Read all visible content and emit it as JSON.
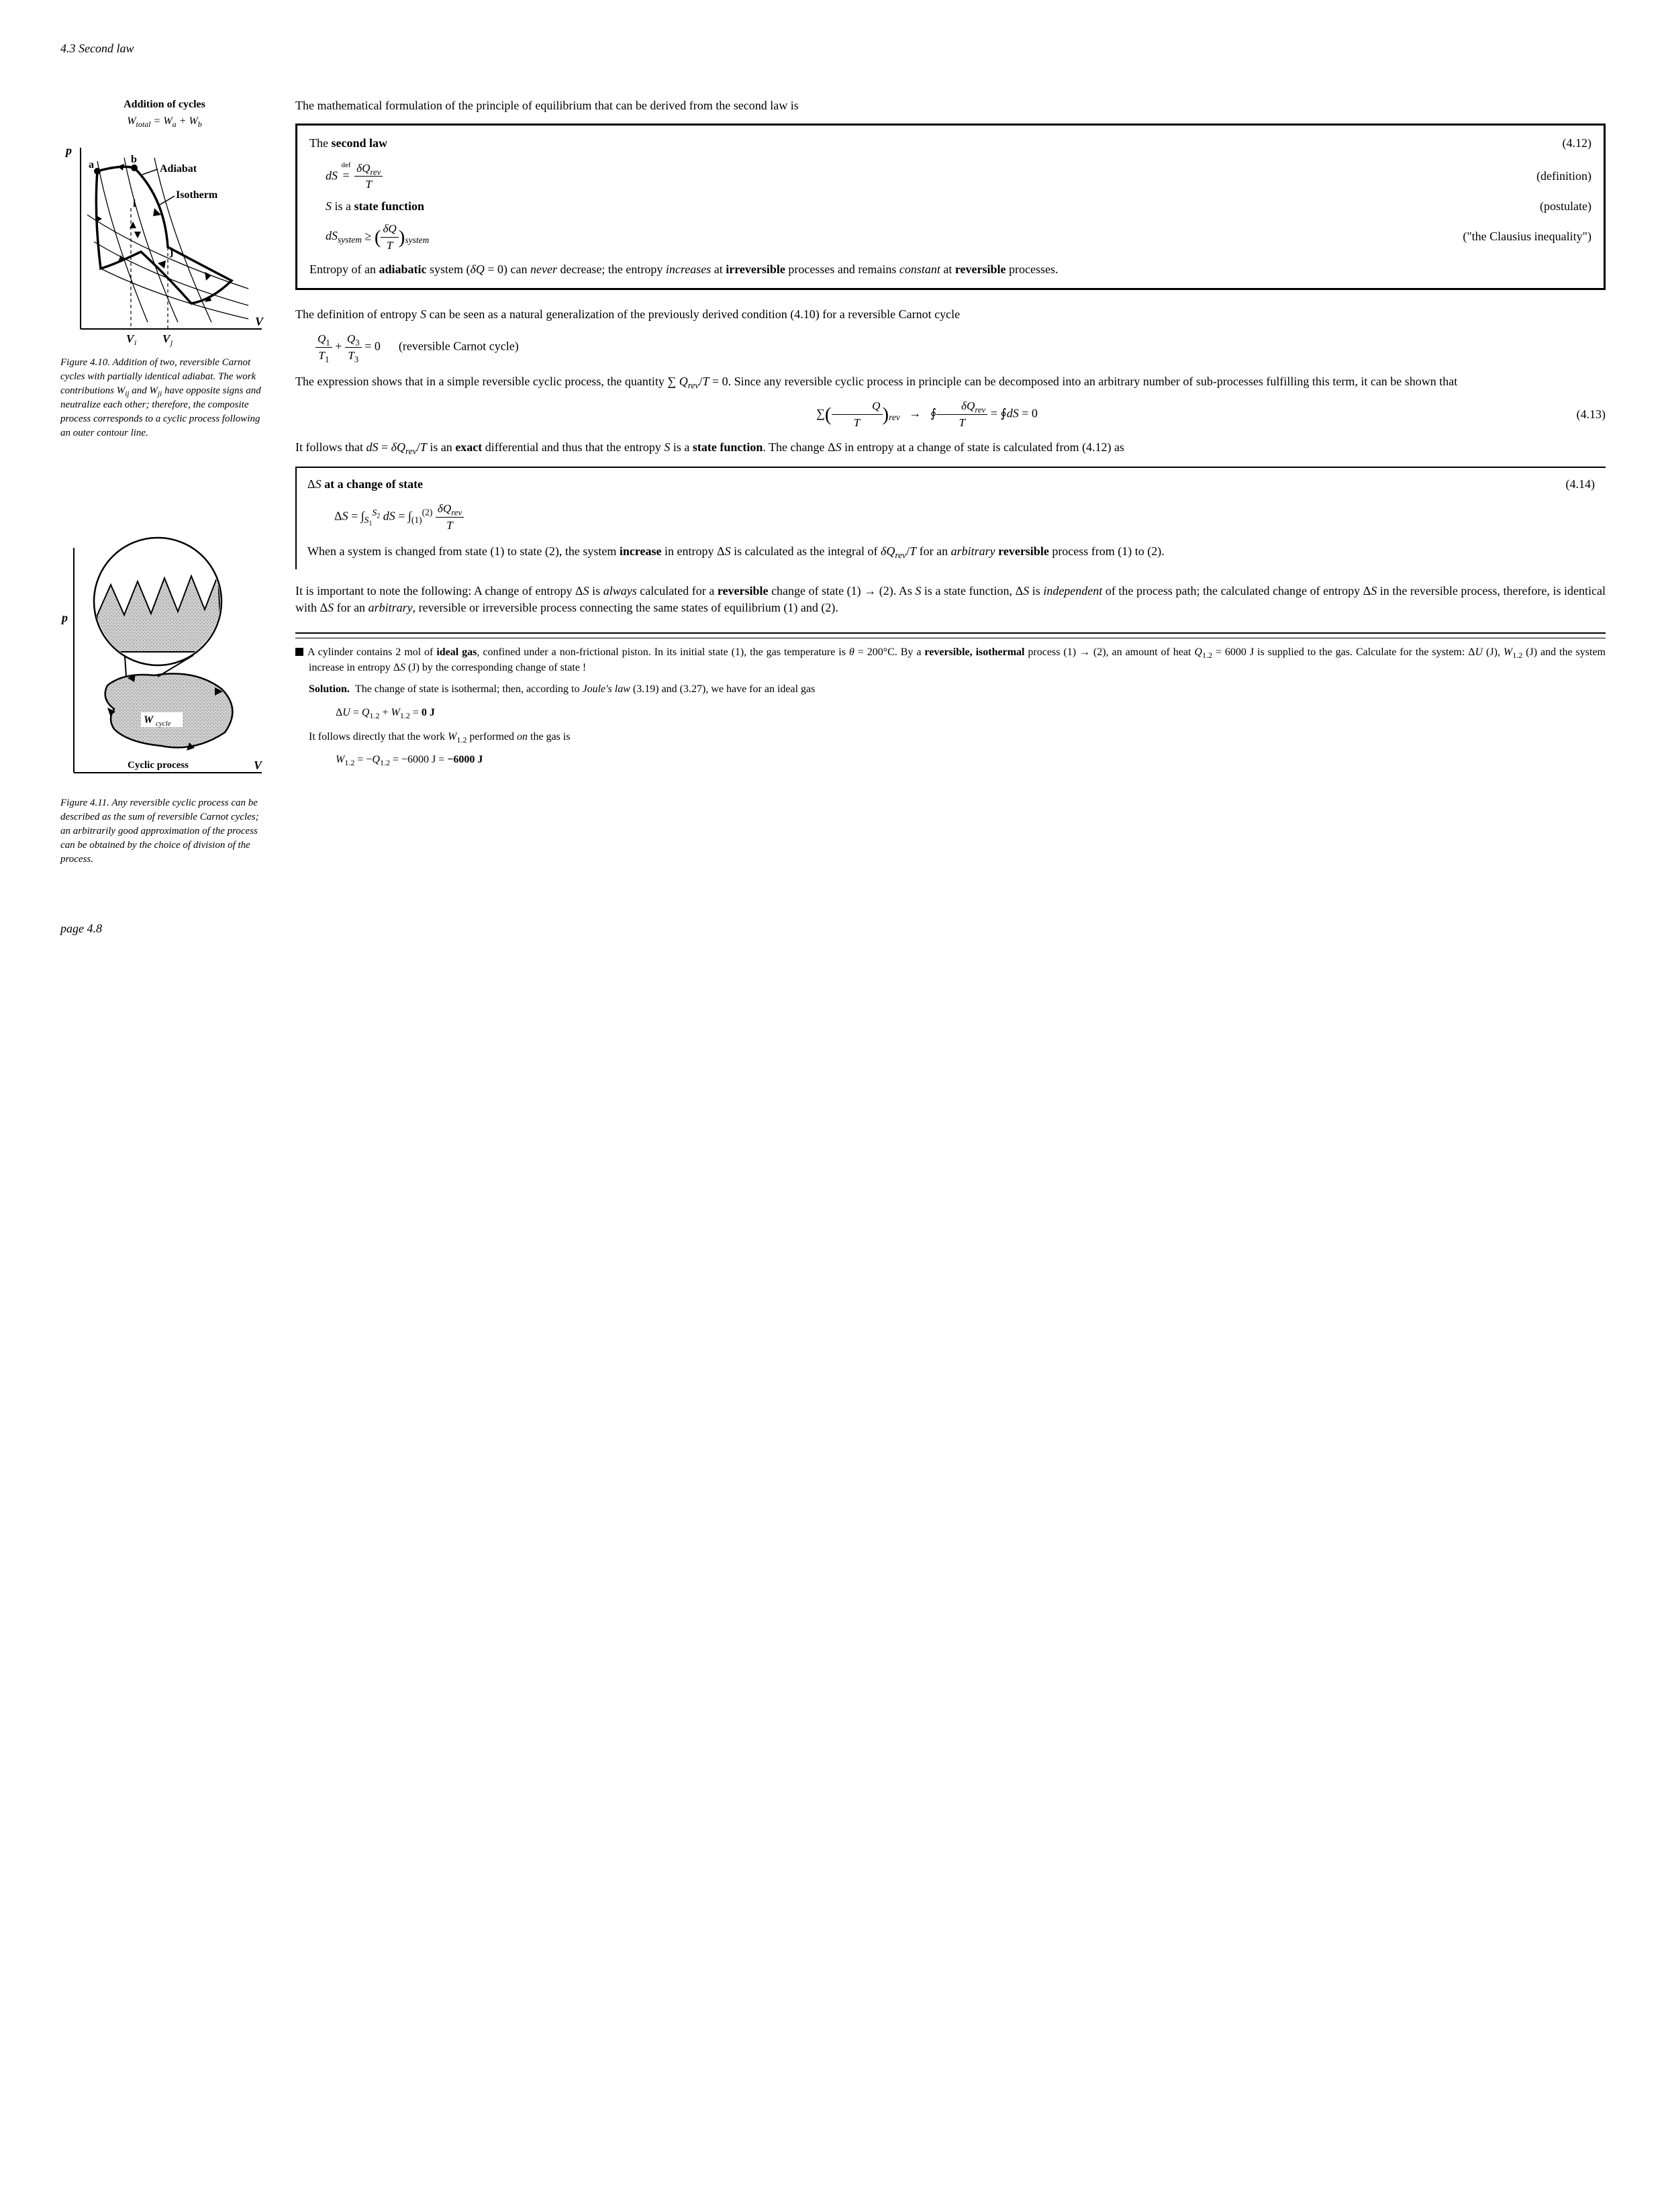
{
  "header": "4.3 Second law",
  "footer": "page 4.8",
  "figures": {
    "f10": {
      "overtitle": "Addition of cycles",
      "eq_line": "W<sub>total</sub> = W<sub>a</sub> + W<sub>b</sub>",
      "labels": {
        "p": "p",
        "V": "V",
        "a": "a",
        "b": "b",
        "i": "i",
        "j": "j",
        "Vi": "V<sub>i</sub>",
        "Vj": "V<sub>j</sub>",
        "adiabat": "Adiabat",
        "isotherm": "Isotherm"
      },
      "caption_label": "Figure 4.10.",
      "caption_body": "Addition of two, reversible Carnot cycles with partially identical adiabat. The work contributions W<sub>ij</sub> and W<sub>ji</sub> have opposite signs and neutralize each other; therefore, the composite process corresponds to a cyclic process following an outer contour line."
    },
    "f11": {
      "labels": {
        "p": "p",
        "V": "V",
        "cyclic": "Cyclic process",
        "Wcycle": "W<sub>cycle</sub>"
      },
      "caption_label": "Figure 4.11.",
      "caption_body": "Any reversible cyclic process can be described as the sum of reversible Carnot cycles; an arbitrarily good approximation of the process can be obtained by the choice of division of the process."
    }
  },
  "body": {
    "intro": "The mathematical formulation of the principle of equilibrium that can be derived from the second law is",
    "lawbox": {
      "title_html": "The <b>second law</b>",
      "eqnum": "(4.12)",
      "items": [
        {
          "eq_html": "<i>dS</i> <span class='def-eq'><span class='top'>def</span>=</span> <span class='frac'><span class='num'><i>δQ<sub>rev</sub></i></span><span class='den'><i>T</i></span></span>",
          "tag": "(definition)"
        },
        {
          "eq_html": "<i>S</i> is a <b>state function</b>",
          "tag": "(postulate)"
        },
        {
          "eq_html": "<i>dS<sub>system</sub></i> ≥ <span class='bigparen'>(</span><span class='frac'><span class='num'><i>δQ</i></span><span class='den'><i>T</i></span></span><span class='bigparen'>)</span><sub><i>system</i></sub>",
          "tag": "(\"the Clausius inequality\")"
        }
      ],
      "tail_html": "Entropy of an <b>adiabatic</b> system (<i>δQ</i> = 0) can <i>never</i> decrease; the entropy <i>increases</i> at <b>irreversible</b> processes and remains <i>constant</i> at <b>reversible</b> processes."
    },
    "para2": "The definition of entropy <i>S</i> can be seen as a natural generalization of the previously derived condition (4.10) for a reversible Carnot cycle",
    "eq_carnot_html": "<span class='frac'><span class='num'><i>Q</i><sub>1</sub></span><span class='den'><i>T</i><sub>1</sub></span></span> + <span class='frac'><span class='num'><i>Q</i><sub>3</sub></span><span class='den'><i>T</i><sub>3</sub></span></span> = 0 &nbsp;&nbsp;&nbsp;&nbsp; (reversible Carnot cycle)",
    "para3": "The expression shows that in a simple reversible cyclic process, the quantity ∑ <i>Q<sub>rev</sub></i>/<i>T</i> = 0. Since any reversible cyclic process in principle can be decomposed into an arbitrary number of sub-processes fulfilling this term, it can be shown that",
    "eq413_html": "∑<span class='bigparen'>(</span><span class='frac'><span class='num'><i>Q</i></span><span class='den'><i>T</i></span></span><span class='bigparen'>)</span><sub><i>rev</i></sub> &nbsp;&nbsp;→&nbsp;&nbsp; ∮<span class='frac'><span class='num'><i>δQ<sub>rev</sub></i></span><span class='den'><i>T</i></span></span> = ∮<i>dS</i> = 0",
    "eq413_num": "(4.13)",
    "para4": "It follows that <i>dS</i> = <i>δQ<sub>rev</sub></i>/<i>T</i> is an <b>exact</b> differential and thus that the entropy <i>S</i> is a <b>state function</b>. The change Δ<i>S</i> in entropy at a change of state is calculated from (4.12) as",
    "insetbox": {
      "title_html": "Δ<i>S</i> <b>at a change of state</b>",
      "eqnum": "(4.14)",
      "eq_html": "Δ<i>S</i> = ∫<sub><i>S</i><sub>1</sub></sub><sup><i>S</i><sub>2</sub></sup> <i>dS</i> = ∫<sub>(1)</sub><sup>(2)</sup> <span class='frac'><span class='num'><i>δQ<sub>rev</sub></i></span><span class='den'><i>T</i></span></span>",
      "tail_html": "When a system is changed from state (1) to state (2), the system <b>increase</b> in entropy Δ<i>S</i> is calculated as the integral of <i>δQ<sub>rev</sub></i>/<i>T</i> for an <i>arbitrary</i> <b>reversible</b> process from (1) to (2)."
    },
    "para5": "It is important to note the following: A change of entropy Δ<i>S</i> is <i>always</i> calculated for a <b>reversible</b> change of state (1) → (2). As <i>S</i> is a state function, Δ<i>S</i> is <i>independent</i> of the process path; the calculated change of entropy Δ<i>S</i> in the reversible process, therefore, is identical with Δ<i>S</i> for an <i>arbitrary</i>, reversible or irreversible process connecting the same states of equilibrium (1) and (2).",
    "example": {
      "problem_html": "A cylinder contains 2 mol of <b>ideal gas</b>, confined under a non-frictional piston. In its initial state (1), the gas temperature is <i>θ</i> = 200°C. By a <b>reversible, isothermal</b> process (1) → (2), an amount of heat <i>Q</i><sub>1.2</sub> = 6000 J is supplied to the gas. Calculate for the system: Δ<i>U</i> (J), <i>W</i><sub>1.2</sub> (J) and the system increase in entropy Δ<i>S</i> (J) by the corresponding change of state !",
      "solution_label": "Solution.",
      "sol1_html": "The change of state is isothermal; then, according to <i>Joule's law</i> (3.19) and (3.27), we have for an ideal gas",
      "sol_eq1_html": "Δ<i>U</i> = <i>Q</i><sub>1.2</sub> + <i>W</i><sub>1.2</sub> = <b>0 J</b>",
      "sol2_html": "It follows directly that the work <i>W</i><sub>1.2</sub> performed <i>on</i> the gas is",
      "sol_eq2_html": "<i>W</i><sub>1.2</sub> = −<i>Q</i><sub>1.2</sub> = −6000 J = <b>−6000 J</b>"
    }
  }
}
